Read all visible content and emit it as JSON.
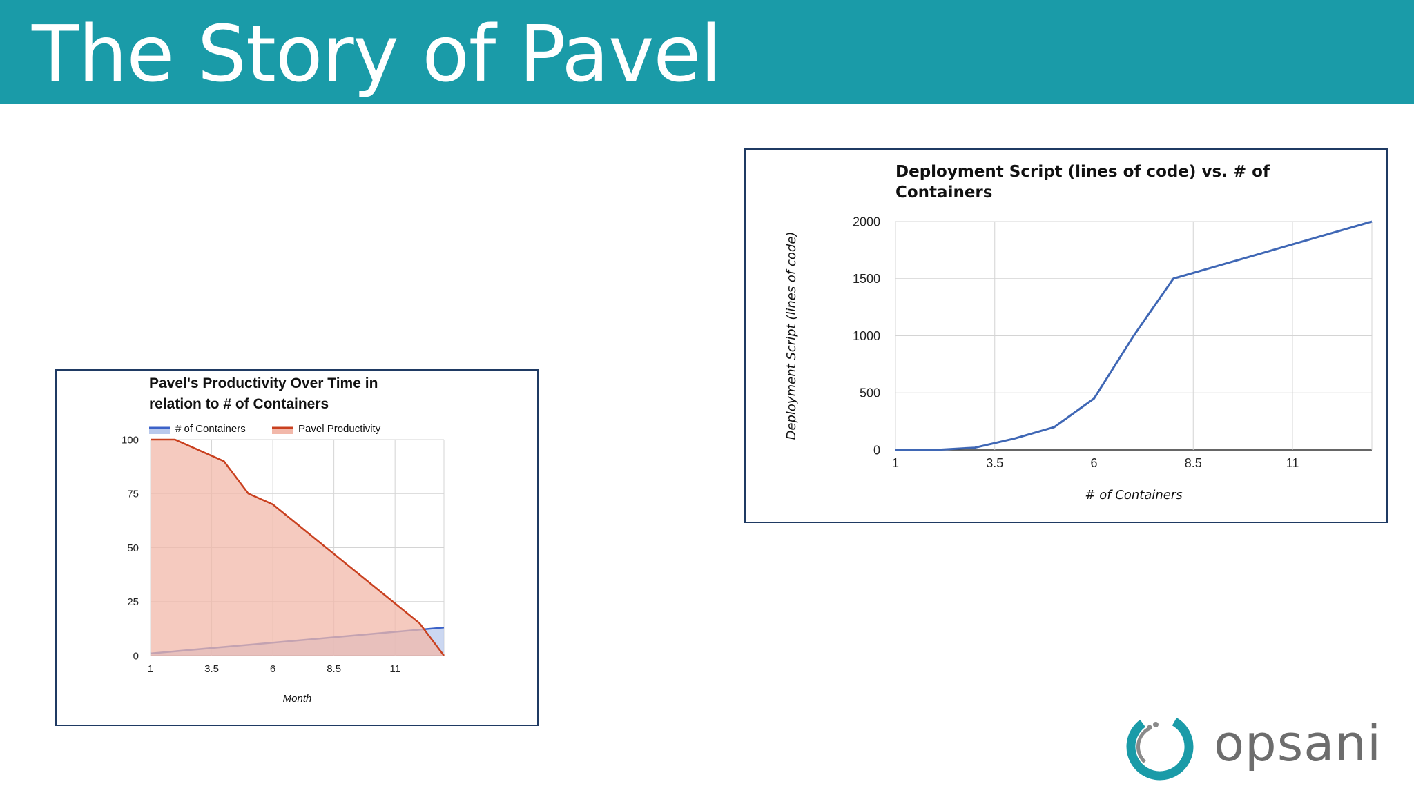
{
  "slide": {
    "title": "The Story of Pavel",
    "header_color": "#1a9ba8",
    "logo": {
      "word": "opsani",
      "icon": "opsani-ring-logo-icon"
    }
  },
  "chart_data": [
    {
      "type": "area",
      "title_lines": [
        "Pavel's Productivity Over Time in",
        "relation to # of Containers"
      ],
      "xlabel": "Month",
      "ylabel": "",
      "xlim": [
        1,
        13
      ],
      "ylim": [
        0,
        100
      ],
      "x_ticks": [
        "1",
        "3.5",
        "6",
        "8.5",
        "11"
      ],
      "x_tick_values": [
        1,
        3.5,
        6,
        8.5,
        11
      ],
      "y_ticks": [
        "0",
        "25",
        "50",
        "75",
        "100"
      ],
      "y_tick_values": [
        0,
        25,
        50,
        75,
        100
      ],
      "grid": true,
      "legend_position": "top",
      "series": [
        {
          "name": "# of Containers",
          "color": "#3b62c8",
          "fill": "#b9c9ec",
          "points": [
            [
              1,
              1
            ],
            [
              13,
              13
            ]
          ]
        },
        {
          "name": "Pavel Productivity",
          "color": "#c9401f",
          "fill": "#f2b8aa",
          "points": [
            [
              1,
              100
            ],
            [
              2,
              100
            ],
            [
              4,
              90
            ],
            [
              5,
              75
            ],
            [
              6,
              70
            ],
            [
              12,
              15
            ],
            [
              13,
              0
            ]
          ]
        }
      ]
    },
    {
      "type": "line",
      "title_lines": [
        "Deployment Script (lines of code) vs. # of",
        "Containers"
      ],
      "xlabel": "# of Containers",
      "ylabel": "Deployment Script (lines of code)",
      "xlim": [
        1,
        13
      ],
      "ylim": [
        0,
        2000
      ],
      "x_ticks": [
        "1",
        "3.5",
        "6",
        "8.5",
        "11"
      ],
      "x_tick_values": [
        1,
        3.5,
        6,
        8.5,
        11
      ],
      "y_ticks": [
        "0",
        "500",
        "1000",
        "1500",
        "2000"
      ],
      "y_tick_values": [
        0,
        500,
        1000,
        1500,
        2000
      ],
      "grid": true,
      "series": [
        {
          "color": "#3f67b5",
          "points": [
            [
              1,
              0
            ],
            [
              2,
              0
            ],
            [
              3,
              20
            ],
            [
              4,
              100
            ],
            [
              5,
              200
            ],
            [
              6,
              450
            ],
            [
              7,
              1000
            ],
            [
              8,
              1500
            ],
            [
              9,
              1600
            ],
            [
              10,
              1700
            ],
            [
              11,
              1800
            ],
            [
              12,
              1900
            ],
            [
              13,
              2000
            ]
          ]
        }
      ]
    }
  ]
}
